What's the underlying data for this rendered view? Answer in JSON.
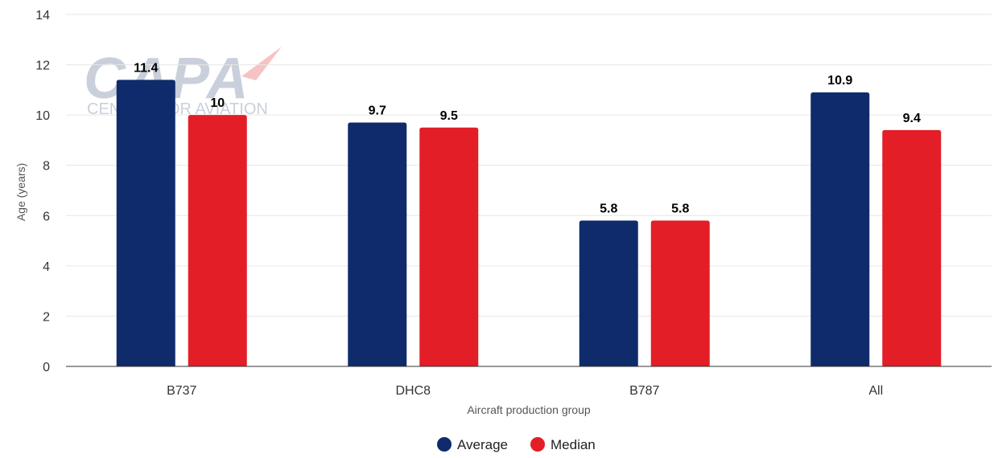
{
  "watermark": {
    "logo_text": "CAPA",
    "tagline": "CENTRE FOR AVIATION"
  },
  "chart_data": {
    "type": "bar",
    "categories": [
      "B737",
      "DHC8",
      "B787",
      "All"
    ],
    "series": [
      {
        "name": "Average",
        "values": [
          11.4,
          9.7,
          5.8,
          10.9
        ],
        "color": "#0f2b6b"
      },
      {
        "name": "Median",
        "values": [
          10,
          9.5,
          5.8,
          9.4
        ],
        "color": "#e31e26"
      }
    ],
    "data_labels": [
      [
        "11.4",
        "10"
      ],
      [
        "9.7",
        "9.5"
      ],
      [
        "5.8",
        "5.8"
      ],
      [
        "10.9",
        "9.4"
      ]
    ],
    "xlabel": "Aircraft production group",
    "ylabel": "Age (years)",
    "ylim": [
      0,
      14
    ],
    "yticks": [
      "0",
      "2",
      "4",
      "6",
      "8",
      "10",
      "12",
      "14"
    ],
    "grid": true,
    "legend_position": "bottom-center"
  }
}
